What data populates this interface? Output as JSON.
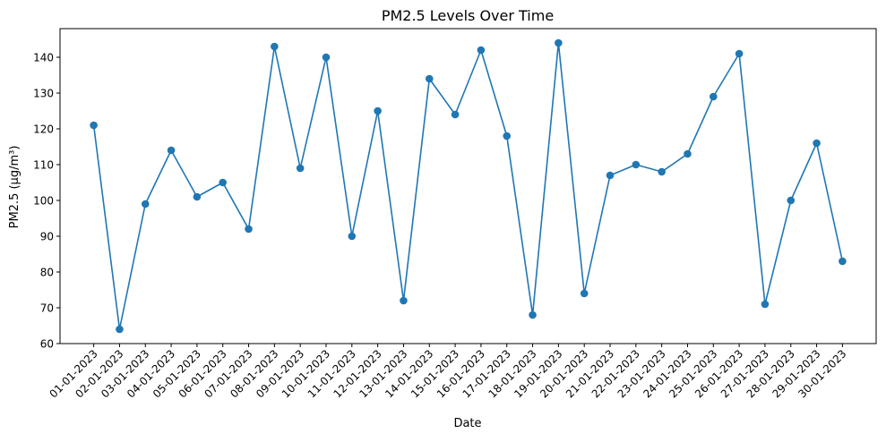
{
  "chart_data": {
    "type": "line",
    "title": "PM2.5 Levels Over Time",
    "xlabel": "Date",
    "ylabel": "PM2.5 (µg/m³)",
    "x": [
      "01-01-2023",
      "02-01-2023",
      "03-01-2023",
      "04-01-2023",
      "05-01-2023",
      "06-01-2023",
      "07-01-2023",
      "08-01-2023",
      "09-01-2023",
      "10-01-2023",
      "11-01-2023",
      "12-01-2023",
      "13-01-2023",
      "14-01-2023",
      "15-01-2023",
      "16-01-2023",
      "17-01-2023",
      "18-01-2023",
      "19-01-2023",
      "20-01-2023",
      "21-01-2023",
      "22-01-2023",
      "23-01-2023",
      "24-01-2023",
      "25-01-2023",
      "26-01-2023",
      "27-01-2023",
      "28-01-2023",
      "29-01-2023",
      "30-01-2023"
    ],
    "series": [
      {
        "values": [
          121,
          64,
          99,
          114,
          101,
          105,
          92,
          143,
          109,
          140,
          90,
          125,
          72,
          134,
          124,
          142,
          118,
          68,
          144,
          74,
          107,
          110,
          108,
          113,
          129,
          141,
          71,
          100,
          116,
          83
        ],
        "color": "#1f77b4",
        "marker": "circle"
      }
    ],
    "ylim": [
      60,
      148
    ],
    "yticks": [
      60,
      70,
      80,
      90,
      100,
      110,
      120,
      130,
      140
    ],
    "grid": false,
    "legend": "none"
  }
}
